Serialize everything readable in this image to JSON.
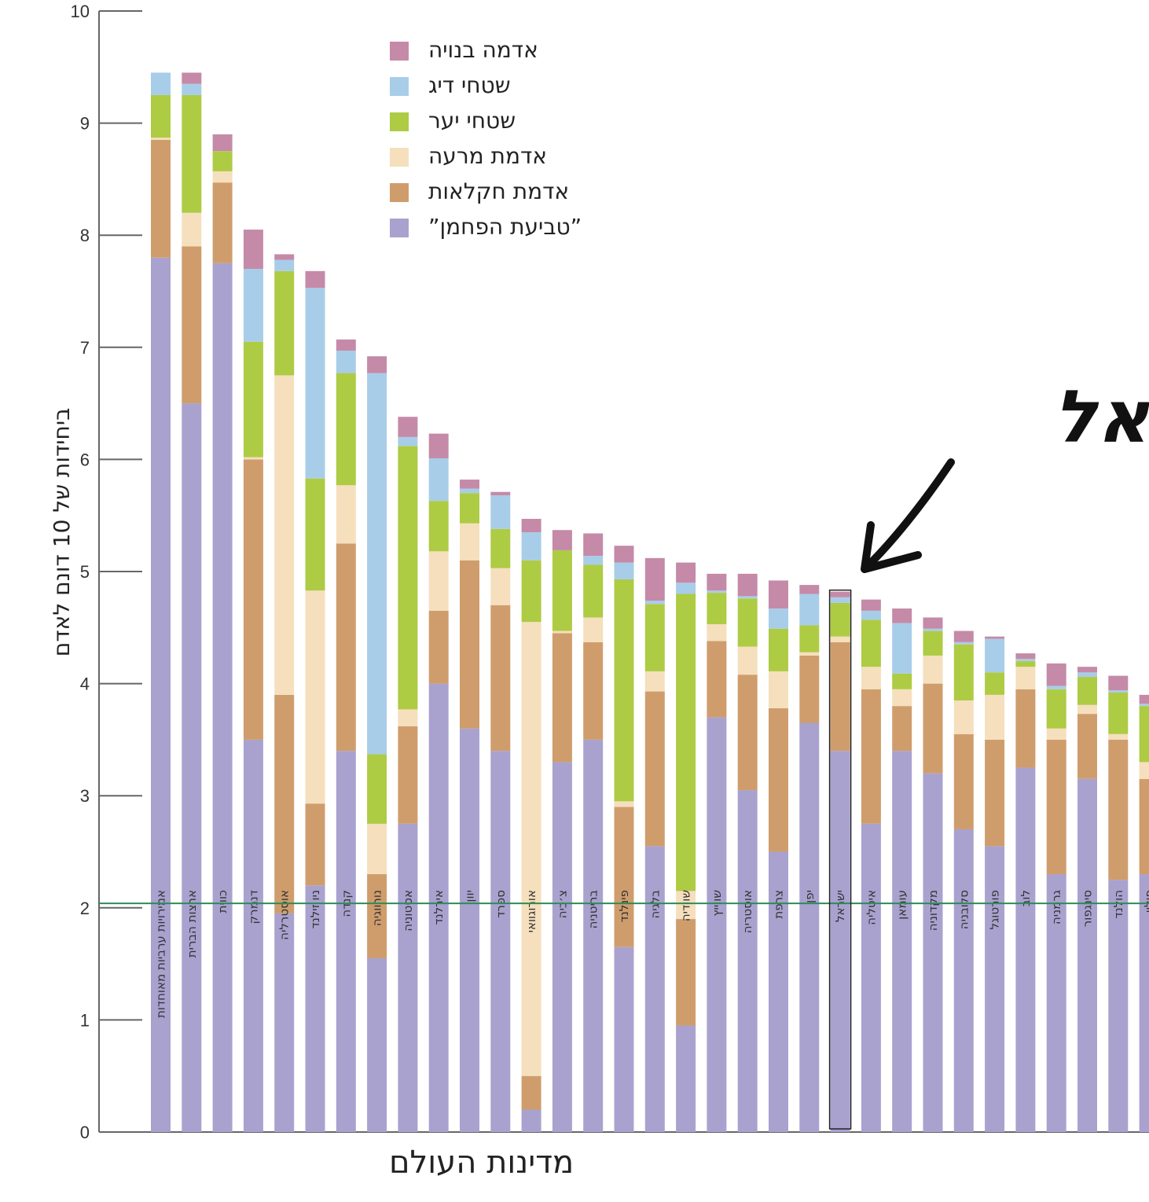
{
  "chart_data": {
    "type": "bar",
    "stacked": true,
    "title": "",
    "xlabel": "מדינות העולם",
    "ylabel": "ביחידות של 10 דונם לאדם",
    "ylim": [
      0,
      10
    ],
    "yticks": [
      "0",
      "1",
      "2",
      "3",
      "4",
      "5",
      "6",
      "7",
      "8",
      "9",
      "10"
    ],
    "reference_line": {
      "value": 2.04,
      "color": "#2e8b57"
    },
    "legend_position": "top-center",
    "colors": {
      "footprint": "#a9a2cf",
      "agri": "#cf9d6c",
      "pasture": "#f5dfbd",
      "forest": "#aecb44",
      "fishing": "#a8cde8",
      "built": "#c58aa8"
    },
    "legend": [
      {
        "key": "built",
        "label": "אדמה בנויה"
      },
      {
        "key": "fishing",
        "label": "שטחי דיג"
      },
      {
        "key": "forest",
        "label": "שטחי יער"
      },
      {
        "key": "pasture",
        "label": "אדמת מרעה"
      },
      {
        "key": "agri",
        "label": "אדמת חקלאות"
      },
      {
        "key": "footprint",
        "label": "”טביעת הפחמן”"
      }
    ],
    "categories": [
      "אמירויות ערביות מאוחדות",
      "ארצות הברית",
      "כווית",
      "דנמרק",
      "אוסטרליה",
      "ניו זילנד",
      "קנדה",
      "נורווגיה",
      "אסטוניה",
      "אירלנד",
      "יוון",
      "ספרד",
      "אורוגוואי",
      "צ׳כיה",
      "בריטניה",
      "פינלנד",
      "בלגיה",
      "שוודיה",
      "שווייץ",
      "אוסטריה",
      "צרפת",
      "יפן",
      "ישראל",
      "איטליה",
      "עומאן",
      "מקדוניה",
      "סלובניה",
      "פורטוגל",
      "לוב",
      "גרמניה",
      "סינגפור",
      "הולנד",
      "פולין"
    ],
    "highlight_category": "ישראל",
    "series": [
      {
        "key": "footprint",
        "name": "”טביעת הפחמן”",
        "values": [
          7.8,
          6.5,
          7.75,
          3.5,
          1.95,
          2.2,
          3.4,
          1.55,
          2.75,
          4.0,
          3.6,
          3.4,
          0.2,
          3.3,
          3.5,
          1.65,
          2.55,
          0.95,
          3.7,
          3.05,
          2.5,
          3.65,
          3.4,
          2.75,
          3.4,
          3.2,
          2.7,
          2.55,
          3.25,
          2.3,
          3.15,
          2.25,
          2.3
        ]
      },
      {
        "key": "agri",
        "name": "אדמת חקלאות",
        "values": [
          1.05,
          1.4,
          0.72,
          2.5,
          1.95,
          0.73,
          1.85,
          0.75,
          0.87,
          0.65,
          1.5,
          1.3,
          0.3,
          1.15,
          0.87,
          1.25,
          1.38,
          0.95,
          0.68,
          1.03,
          1.28,
          0.6,
          0.97,
          1.2,
          0.4,
          0.8,
          0.85,
          0.95,
          0.7,
          1.2,
          0.58,
          1.25,
          0.85
        ]
      },
      {
        "key": "pasture",
        "name": "אדמת מרעה",
        "values": [
          0.02,
          0.3,
          0.1,
          0.02,
          2.85,
          1.9,
          0.52,
          0.45,
          0.15,
          0.53,
          0.33,
          0.33,
          4.05,
          0.02,
          0.22,
          0.05,
          0.18,
          0.25,
          0.15,
          0.25,
          0.33,
          0.03,
          0.05,
          0.2,
          0.15,
          0.25,
          0.3,
          0.4,
          0.2,
          0.1,
          0.08,
          0.05,
          0.15
        ]
      },
      {
        "key": "forest",
        "name": "שטחי יער",
        "values": [
          0.38,
          1.05,
          0.18,
          1.03,
          0.93,
          1.0,
          1.0,
          0.62,
          2.35,
          0.45,
          0.27,
          0.35,
          0.55,
          0.72,
          0.47,
          1.98,
          0.6,
          2.65,
          0.28,
          0.43,
          0.38,
          0.24,
          0.3,
          0.42,
          0.14,
          0.22,
          0.5,
          0.2,
          0.05,
          0.35,
          0.25,
          0.37,
          0.5
        ]
      },
      {
        "key": "fishing",
        "name": "שטחי דיג",
        "values": [
          0.2,
          0.1,
          0.0,
          0.65,
          0.1,
          1.7,
          0.2,
          3.4,
          0.08,
          0.38,
          0.04,
          0.3,
          0.25,
          0.0,
          0.08,
          0.15,
          0.03,
          0.1,
          0.02,
          0.02,
          0.18,
          0.28,
          0.05,
          0.08,
          0.45,
          0.02,
          0.02,
          0.3,
          0.02,
          0.03,
          0.04,
          0.02,
          0.02
        ]
      },
      {
        "key": "built",
        "name": "אדמה בנויה",
        "values": [
          0.0,
          0.1,
          0.15,
          0.35,
          0.05,
          0.15,
          0.1,
          0.15,
          0.18,
          0.22,
          0.08,
          0.03,
          0.12,
          0.18,
          0.2,
          0.15,
          0.38,
          0.18,
          0.15,
          0.2,
          0.25,
          0.08,
          0.05,
          0.1,
          0.13,
          0.1,
          0.1,
          0.02,
          0.05,
          0.2,
          0.05,
          0.13,
          0.08
        ]
      }
    ],
    "annotations": [
      {
        "text": "ישראל",
        "target": "ישראל"
      }
    ]
  }
}
